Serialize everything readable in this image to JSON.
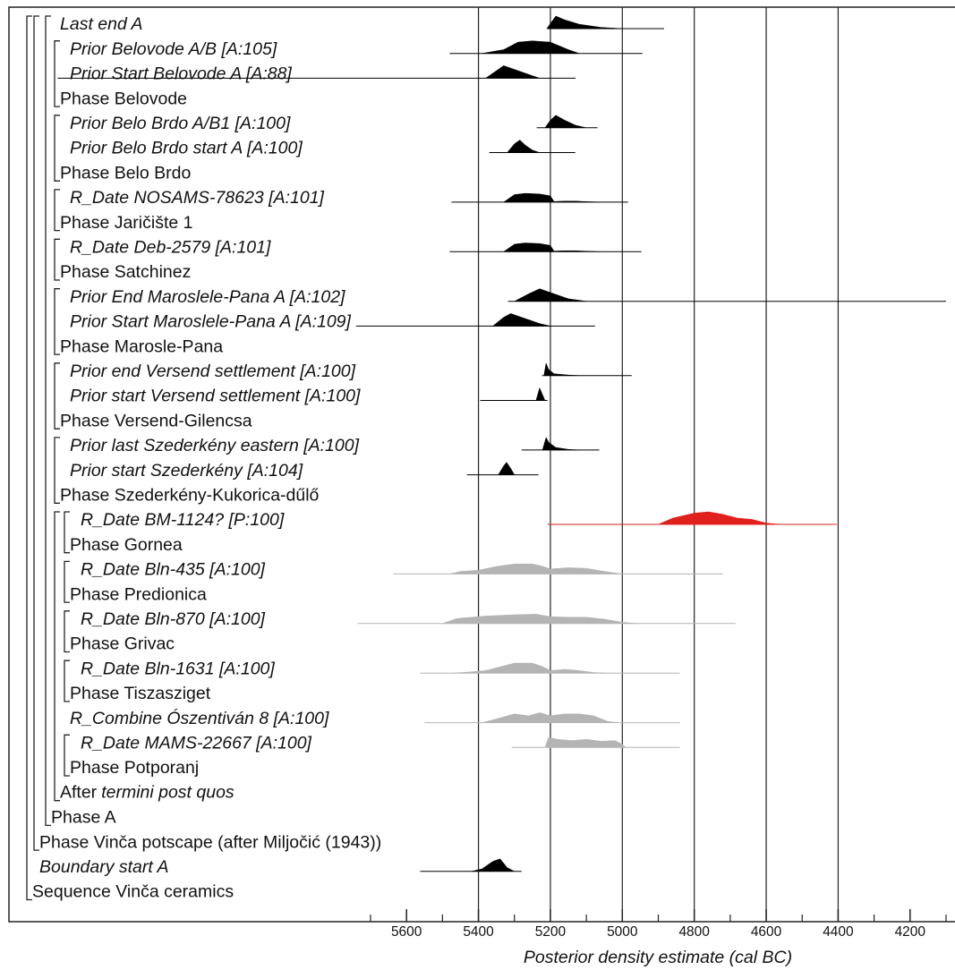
{
  "chart_data": {
    "type": "oxcal",
    "xlabel": "Posterior density estimate (cal BC)",
    "xlim": [
      5700,
      4100
    ],
    "xticks": [
      5600,
      5400,
      5200,
      5000,
      4800,
      4600,
      4400,
      4200
    ],
    "xminorticks": [
      5700,
      5500,
      5300,
      5100,
      4900,
      4700,
      4500,
      4300,
      4100
    ],
    "vlines": [
      5400,
      5200,
      5000,
      4800,
      4600,
      4400
    ],
    "rows": [
      {
        "label": "Last end A",
        "italic": true,
        "color": "#000000",
        "range": [
          5208,
          4884
        ],
        "density": {
          "x": [
            5210,
            5195,
            5185,
            5160,
            5120,
            5060,
            5000
          ],
          "h": [
            0,
            0.6,
            1,
            0.7,
            0.35,
            0.1,
            0
          ]
        }
      },
      {
        "label": "Prior Belovode A/B [A:105]",
        "italic": true,
        "color": "#000000",
        "range": [
          5480,
          4944
        ],
        "density": {
          "x": [
            5390,
            5330,
            5290,
            5250,
            5200,
            5150,
            5120
          ],
          "h": [
            0,
            0.3,
            0.9,
            1,
            0.9,
            0.3,
            0
          ]
        }
      },
      {
        "label": "Prior Start Belovode A [A:88]",
        "italic": true,
        "color": "#000000",
        "range": [
          6570,
          5130
        ],
        "density": {
          "x": [
            5380,
            5350,
            5330,
            5300,
            5260,
            5230
          ],
          "h": [
            0,
            0.6,
            1,
            0.7,
            0.3,
            0
          ]
        }
      },
      {
        "label": "Phase Belovode",
        "italic": false
      },
      {
        "label": "Prior Belo Brdo A/B1 [A:100]",
        "italic": true,
        "color": "#000000",
        "range": [
          5238,
          5069
        ],
        "density": {
          "x": [
            5215,
            5200,
            5185,
            5160,
            5130,
            5100
          ],
          "h": [
            0,
            0.6,
            1,
            0.6,
            0.2,
            0
          ]
        }
      },
      {
        "label": "Prior Belo Brdo start A [A:100]",
        "italic": true,
        "color": "#000000",
        "range": [
          5370,
          5131
        ],
        "density": {
          "x": [
            5320,
            5300,
            5285,
            5270,
            5250,
            5230
          ],
          "h": [
            0,
            0.7,
            1,
            0.6,
            0.2,
            0
          ]
        }
      },
      {
        "label": "Phase Belo Brdo",
        "italic": false
      },
      {
        "label": "R_Date NOSAMS-78623 [A:101]",
        "italic": true,
        "color": "#000000",
        "range": [
          5475,
          4984
        ],
        "density": {
          "x": [
            5330,
            5300,
            5270,
            5230,
            5200,
            5190,
            5160,
            5130,
            5100,
            5060
          ],
          "h": [
            0,
            0.6,
            0.7,
            0.65,
            0.5,
            0.05,
            0.08,
            0.08,
            0.04,
            0
          ]
        }
      },
      {
        "label": "Phase Jaričište 1",
        "italic": false
      },
      {
        "label": "R_Date Deb-2579 [A:101]",
        "italic": true,
        "color": "#000000",
        "range": [
          5480,
          4947
        ],
        "density": {
          "x": [
            5330,
            5300,
            5270,
            5230,
            5200,
            5190,
            5160,
            5130,
            5100,
            5060
          ],
          "h": [
            0,
            0.6,
            0.7,
            0.65,
            0.5,
            0.05,
            0.08,
            0.08,
            0.04,
            0
          ]
        }
      },
      {
        "label": "Phase Satchinez",
        "italic": false
      },
      {
        "label": "Prior End Maroslele-Pana A [A:102]",
        "italic": true,
        "color": "#000000",
        "range": [
          5318,
          4100
        ],
        "density": {
          "x": [
            5300,
            5260,
            5230,
            5200,
            5150,
            5100
          ],
          "h": [
            0,
            0.6,
            1,
            0.7,
            0.2,
            0
          ]
        }
      },
      {
        "label": "Prior Start Maroslele-Pana A [A:109]",
        "italic": true,
        "color": "#000000",
        "range": [
          5740,
          5076
        ],
        "density": {
          "x": [
            5360,
            5330,
            5310,
            5270,
            5230,
            5200
          ],
          "h": [
            0,
            0.7,
            1,
            0.6,
            0.2,
            0
          ]
        }
      },
      {
        "label": "Phase Marosle-Pana",
        "italic": false
      },
      {
        "label": "Prior end Versend settlement [A:100]",
        "italic": true,
        "color": "#000000",
        "range": [
          5223,
          4974
        ],
        "density": {
          "x": [
            5218,
            5212,
            5205,
            5190,
            5150,
            5120
          ],
          "h": [
            0,
            1,
            0.5,
            0.15,
            0.05,
            0
          ]
        }
      },
      {
        "label": "Prior start Versend settlement [A:100]",
        "italic": true,
        "color": "#000000",
        "range": [
          5395,
          5208
        ],
        "density": {
          "x": [
            5240,
            5230,
            5224,
            5215
          ],
          "h": [
            0,
            1,
            0.6,
            0
          ]
        }
      },
      {
        "label": "Phase Versend-Gilencsa",
        "italic": false
      },
      {
        "label": "Prior last Szederkény eastern [A:100]",
        "italic": true,
        "color": "#000000",
        "range": [
          5280,
          5064
        ],
        "density": {
          "x": [
            5222,
            5212,
            5204,
            5185,
            5150,
            5120
          ],
          "h": [
            0,
            1,
            0.6,
            0.2,
            0.05,
            0
          ]
        }
      },
      {
        "label": "Prior start Szederkény [A:104]",
        "italic": true,
        "color": "#000000",
        "range": [
          5432,
          5233
        ],
        "density": {
          "x": [
            5345,
            5330,
            5322,
            5310,
            5300
          ],
          "h": [
            0,
            0.7,
            1,
            0.5,
            0
          ]
        }
      },
      {
        "label": "Phase Szederkény-Kukorica-dűlő",
        "italic": false
      },
      {
        "label": "R_Date BM-1124? [P:100]",
        "italic": true,
        "color": "#e0201c",
        "range": [
          5208,
          4404
        ],
        "density": {
          "x": [
            4900,
            4860,
            4800,
            4760,
            4720,
            4680,
            4640,
            4600,
            4560
          ],
          "h": [
            0,
            0.5,
            0.9,
            1,
            0.8,
            0.5,
            0.4,
            0.1,
            0
          ]
        }
      },
      {
        "label": "Phase Gornea",
        "italic": false
      },
      {
        "label": "R_Date Bln-435 [A:100]",
        "italic": true,
        "color": "#b4b4b4",
        "range": [
          5637,
          4720
        ],
        "density": {
          "x": [
            5480,
            5450,
            5400,
            5350,
            5300,
            5250,
            5220,
            5200,
            5150,
            5100,
            5050,
            5000
          ],
          "h": [
            0,
            0.2,
            0.3,
            0.6,
            0.8,
            0.8,
            0.6,
            0.4,
            0.5,
            0.45,
            0.2,
            0
          ]
        }
      },
      {
        "label": "Phase Predionica",
        "italic": false
      },
      {
        "label": "R_Date Bln-870 [A:100]",
        "italic": true,
        "color": "#b4b4b4",
        "range": [
          5736,
          4685
        ],
        "density": {
          "x": [
            5500,
            5460,
            5420,
            5380,
            5300,
            5240,
            5200,
            5150,
            5100,
            5050,
            5000,
            4960
          ],
          "h": [
            0,
            0.4,
            0.5,
            0.6,
            0.7,
            0.75,
            0.55,
            0.5,
            0.5,
            0.35,
            0.1,
            0
          ]
        }
      },
      {
        "label": "Phase Grivac",
        "italic": false
      },
      {
        "label": "R_Date Bln-1631 [A:100]",
        "italic": true,
        "color": "#b4b4b4",
        "range": [
          5562,
          4840
        ],
        "density": {
          "x": [
            5470,
            5420,
            5380,
            5340,
            5300,
            5250,
            5220,
            5200,
            5160,
            5120,
            5080,
            5040
          ],
          "h": [
            0,
            0.1,
            0.2,
            0.5,
            0.8,
            0.8,
            0.5,
            0.2,
            0.3,
            0.2,
            0.05,
            0
          ]
        }
      },
      {
        "label": "Phase Tiszasziget",
        "italic": false
      },
      {
        "label": "R_Combine Ószentiván 8 [A:100]",
        "italic": true,
        "color": "#b4b4b4",
        "range": [
          5550,
          4840
        ],
        "density": {
          "x": [
            5390,
            5350,
            5300,
            5260,
            5230,
            5200,
            5160,
            5120,
            5080,
            5040,
            5010
          ],
          "h": [
            0,
            0.3,
            0.7,
            0.55,
            0.8,
            0.55,
            0.7,
            0.7,
            0.55,
            0.1,
            0
          ]
        }
      },
      {
        "label": "R_Date MAMS-22667 [A:100]",
        "italic": true,
        "color": "#b4b4b4",
        "range": [
          5308,
          4840
        ],
        "density": {
          "x": [
            5215,
            5205,
            5180,
            5140,
            5100,
            5060,
            5020,
            5000,
            4990
          ],
          "h": [
            0,
            0.8,
            0.65,
            0.55,
            0.65,
            0.5,
            0.55,
            0.25,
            0
          ]
        }
      },
      {
        "label": "Phase Potporanj",
        "italic": false
      },
      {
        "label": [
          "After",
          "termini post quos"
        ],
        "italic": [
          false,
          true
        ]
      },
      {
        "label": "Phase A",
        "italic": false
      },
      {
        "label": "Phase Vinča potscape (after Miljočić (1943))",
        "italic": false
      },
      {
        "label": "Boundary start A",
        "italic": true,
        "color": "#000000",
        "range": [
          5562,
          5280
        ],
        "density": {
          "x": [
            5420,
            5390,
            5360,
            5340,
            5320,
            5300
          ],
          "h": [
            0,
            0.2,
            0.8,
            1,
            0.3,
            0
          ]
        }
      },
      {
        "label": "Sequence Vinča ceramics",
        "italic": false
      }
    ]
  }
}
